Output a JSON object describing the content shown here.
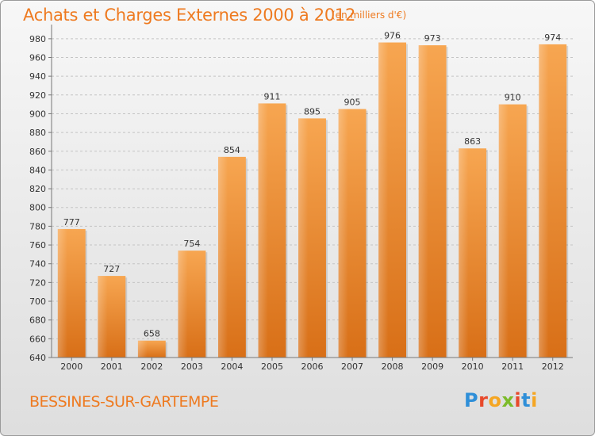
{
  "header": {
    "title": "Achats et Charges Externes 2000 à 2012",
    "unit": "(en milliers d'€)"
  },
  "footer": {
    "commune": "BESSINES-SUR-GARTEMPE",
    "logo_letters": [
      "P",
      "r",
      "o",
      "x",
      "i",
      "t",
      "i"
    ],
    "logo_colors": [
      "#2f8fd8",
      "#e8492b",
      "#f5a623",
      "#7cbb2a",
      "#e8492b",
      "#2f8fd8",
      "#f5a623"
    ]
  },
  "chart_data": {
    "type": "bar",
    "categories": [
      "2000",
      "2001",
      "2002",
      "2003",
      "2004",
      "2005",
      "2006",
      "2007",
      "2008",
      "2009",
      "2010",
      "2011",
      "2012"
    ],
    "values": [
      777,
      727,
      658,
      754,
      854,
      911,
      895,
      905,
      976,
      973,
      863,
      910,
      974
    ],
    "ylim": [
      640,
      990
    ],
    "yticks": [
      640,
      660,
      680,
      700,
      720,
      740,
      760,
      780,
      800,
      820,
      840,
      860,
      880,
      900,
      920,
      940,
      960,
      980
    ],
    "grid": true,
    "bar_color": "#f08a2c",
    "xlabel": "",
    "ylabel": ""
  }
}
